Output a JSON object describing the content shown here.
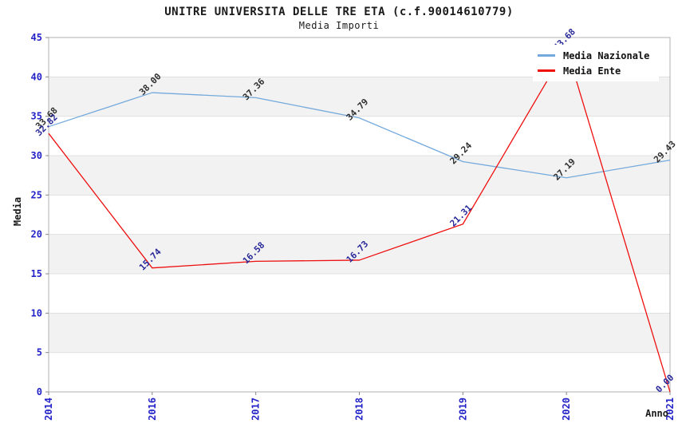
{
  "chart_data": {
    "type": "line",
    "title": "UNITRE UNIVERSITA DELLE TRE ETA (c.f.90014610779)",
    "subtitle": "Media Importi",
    "xlabel": "Anno",
    "ylabel": "Media",
    "categories": [
      "2014",
      "2016",
      "2017",
      "2018",
      "2019",
      "2020",
      "2021"
    ],
    "ylim": [
      0,
      45
    ],
    "ytick_step": 5,
    "grid": "horizontal-bands",
    "legend_position": "top-right",
    "series": [
      {
        "name": "Media Nazionale",
        "color": "#74a9dc",
        "label_color": "#2f2f2f",
        "values": [
          33.68,
          38.0,
          37.36,
          34.79,
          29.24,
          27.19,
          29.43
        ]
      },
      {
        "name": "Media Ente",
        "color": "#ee0f0f",
        "label_color": "#28289a",
        "values": [
          32.82,
          15.74,
          16.58,
          16.73,
          21.31,
          43.68,
          0.0
        ]
      }
    ],
    "colors": {
      "tick_label": "#2323c8",
      "band": "#f2f2f2",
      "gridline": "#e0e0e0",
      "plot_border": "#b0b0b0",
      "tick_mark": "#888888",
      "legend_bg": "#ffffff"
    }
  }
}
